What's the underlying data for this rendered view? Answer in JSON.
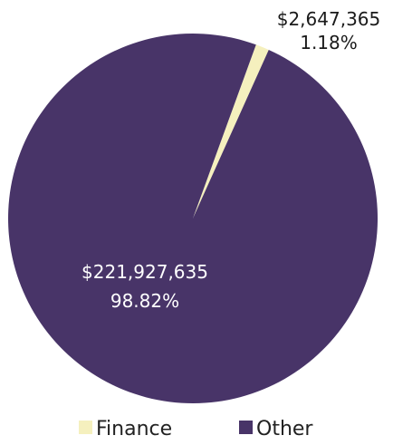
{
  "chart_data": {
    "type": "pie",
    "title": "",
    "slices": [
      {
        "name": "Finance",
        "value": 2647365,
        "value_label": "$2,647,365",
        "percent_label": "1.18%",
        "color": "#F5F0BE",
        "label_color": "#1a1a1a"
      },
      {
        "name": "Other",
        "value": 221927635,
        "value_label": "$221,927,635",
        "percent_label": "98.82%",
        "color": "#483468",
        "label_color": "#ffffff"
      }
    ],
    "legend": {
      "position": "bottom",
      "entries": [
        "Finance",
        "Other"
      ]
    }
  }
}
